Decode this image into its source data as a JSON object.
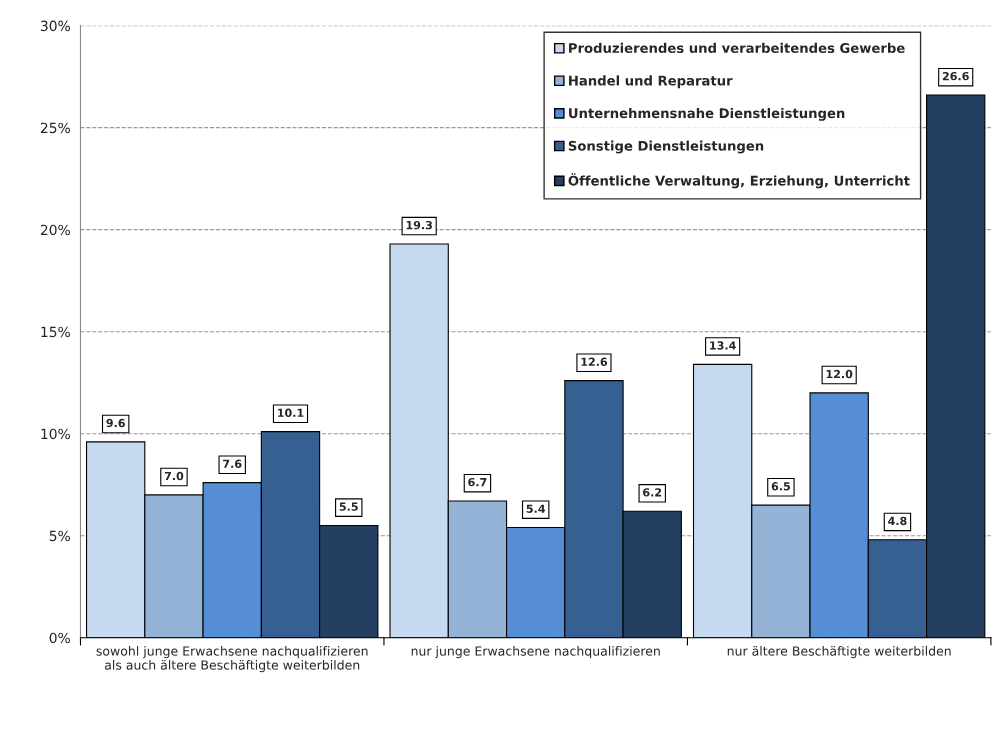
{
  "chart_data": {
    "type": "bar",
    "categories": [
      "sowohl junge Erwachsene nachqualifizieren\nals auch ältere Beschäftigte weiterbilden",
      "nur junge Erwachsene nachqualifizieren",
      "nur ältere Beschäftigte weiterbilden"
    ],
    "series": [
      {
        "name": "Produzierendes und verarbeitendes Gewerbe",
        "color": "#c6d9f1",
        "values": [
          9.6,
          19.3,
          13.4
        ],
        "value_labels": [
          "9.6",
          "19.3",
          "13.4"
        ]
      },
      {
        "name": "Handel und Reparatur",
        "color": "#95b3d7",
        "values": [
          7.0,
          6.7,
          6.5
        ],
        "value_labels": [
          "7.0",
          "6.7",
          "6.5"
        ]
      },
      {
        "name": "Unternehmensnahe Dienstleistungen",
        "color": "#558ed5",
        "values": [
          7.6,
          5.4,
          12.0
        ],
        "value_labels": [
          "7.6",
          "5.4",
          "12.0"
        ]
      },
      {
        "name": "Sonstige Dienstleistungen",
        "color": "#376092",
        "values": [
          10.1,
          12.6,
          4.8
        ],
        "value_labels": [
          "10.1",
          "12.6",
          "4.8"
        ]
      },
      {
        "name": "Öffentliche Verwaltung, Erziehung, Unterricht",
        "color": "#243f60",
        "values": [
          5.5,
          6.2,
          26.6
        ],
        "value_labels": [
          "5.5",
          "6.2",
          "26.6"
        ]
      }
    ],
    "ylim": [
      0,
      30
    ],
    "yticks": [
      {
        "value": 0,
        "label": "0%"
      },
      {
        "value": 5,
        "label": "5%"
      },
      {
        "value": 10,
        "label": "10%"
      },
      {
        "value": 15,
        "label": "15%"
      },
      {
        "value": 20,
        "label": "20%"
      },
      {
        "value": 25,
        "label": "25%"
      },
      {
        "value": 30,
        "label": "30%"
      }
    ],
    "grid": "y",
    "legend": "top right"
  }
}
